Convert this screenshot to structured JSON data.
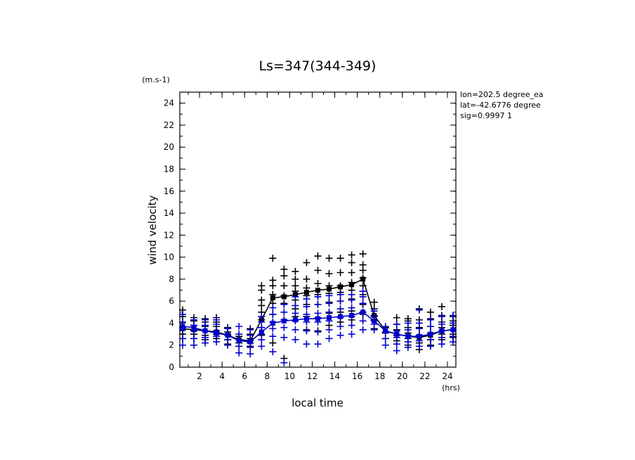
{
  "chart_data": {
    "type": "scatter",
    "title": "Ls=347(344-349)",
    "xlabel": "local time",
    "ylabel": "wind velocity",
    "x_unit": "(hrs)",
    "y_unit": "(m.s-1)",
    "xlim": [
      0.25,
      24.75
    ],
    "ylim": [
      0,
      25
    ],
    "x_ticks": [
      2,
      4,
      6,
      8,
      10,
      12,
      14,
      16,
      18,
      20,
      22,
      24
    ],
    "y_ticks": [
      0,
      2,
      4,
      6,
      8,
      10,
      12,
      14,
      16,
      18,
      20,
      22,
      24
    ],
    "annotations": [
      "lon=202.5 degree_ea",
      "lat=-42.6776 degree",
      "sig=0.9997 1"
    ],
    "x": [
      0.5,
      1.5,
      2.5,
      3.5,
      4.5,
      5.5,
      6.5,
      7.5,
      8.5,
      9.5,
      10.5,
      11.5,
      12.5,
      13.5,
      14.5,
      15.5,
      16.5,
      17.5,
      18.5,
      19.5,
      20.5,
      21.5,
      22.5,
      23.5,
      24.5
    ],
    "series": [
      {
        "color": "#000000",
        "mean": [
          3.5,
          3.4,
          3.3,
          3.2,
          2.9,
          2.5,
          2.4,
          4.3,
          6.3,
          6.4,
          6.6,
          6.8,
          7.0,
          7.1,
          7.3,
          7.5,
          8.0,
          4.7,
          3.3,
          3.0,
          2.8,
          2.7,
          2.9,
          3.3,
          3.4
        ],
        "points": [
          [
            2.6,
            3.0,
            3.6,
            4.1,
            4.6,
            5.2
          ],
          [
            2.6,
            3.0,
            3.4,
            3.8,
            4.2,
            4.5
          ],
          [
            2.5,
            2.9,
            3.3,
            3.7,
            4.1,
            4.4
          ],
          [
            2.6,
            3.0,
            3.3,
            3.7,
            4.1,
            4.5
          ],
          [
            2.1,
            2.5,
            2.9,
            3.2,
            3.6
          ],
          [
            1.9,
            2.2,
            2.5,
            2.8
          ],
          [
            1.9,
            2.2,
            2.6,
            3.0,
            3.5
          ],
          [
            2.9,
            3.6,
            4.3,
            5.0,
            5.6,
            6.1,
            7.0,
            7.4
          ],
          [
            2.2,
            4.8,
            5.8,
            6.6,
            7.4,
            7.9,
            9.9
          ],
          [
            0.8,
            4.3,
            5.8,
            6.5,
            7.4,
            8.3,
            8.9
          ],
          [
            4.6,
            5.3,
            6.1,
            6.9,
            7.4,
            8.0,
            8.7
          ],
          [
            3.4,
            4.6,
            5.7,
            6.5,
            7.2,
            8.0,
            9.5
          ],
          [
            3.3,
            4.5,
            5.7,
            6.6,
            7.6,
            8.8,
            10.1
          ],
          [
            3.8,
            4.9,
            5.9,
            6.7,
            7.4,
            8.5,
            9.9
          ],
          [
            4.1,
            5.0,
            6.0,
            6.8,
            7.4,
            8.6,
            9.9
          ],
          [
            4.3,
            5.1,
            6.2,
            7.0,
            7.7,
            8.6,
            9.5,
            10.2
          ],
          [
            4.8,
            5.7,
            6.6,
            7.4,
            8.1,
            8.8,
            9.3,
            10.3
          ],
          [
            3.5,
            4.3,
            4.7,
            5.3,
            5.9
          ],
          [
            2.6,
            3.1,
            3.6
          ],
          [
            2.4,
            2.9,
            3.4,
            3.9,
            4.5
          ],
          [
            2.0,
            2.6,
            3.1,
            3.6,
            4.2,
            4.4
          ],
          [
            1.6,
            2.2,
            2.9,
            3.6,
            4.3,
            5.3
          ],
          [
            2.0,
            2.5,
            3.1,
            3.7,
            4.4,
            5.0
          ],
          [
            2.5,
            3.0,
            3.6,
            4.1,
            4.7,
            5.5
          ],
          [
            2.7,
            3.0,
            3.4,
            3.8,
            4.2,
            4.6
          ]
        ]
      },
      {
        "color": "#0000cc",
        "mean": [
          3.7,
          3.6,
          3.3,
          3.1,
          2.9,
          2.4,
          2.3,
          3.2,
          4.0,
          4.2,
          4.3,
          4.4,
          4.4,
          4.5,
          4.6,
          4.7,
          5.0,
          4.2,
          3.3,
          3.0,
          2.8,
          2.8,
          3.0,
          3.3,
          3.4
        ],
        "points": [
          [
            2.0,
            2.6,
            3.4,
            4.1,
            4.8
          ],
          [
            2.0,
            2.6,
            3.3,
            3.8,
            4.3
          ],
          [
            2.2,
            2.7,
            3.3,
            3.8,
            4.3
          ],
          [
            2.3,
            2.8,
            3.3,
            3.9,
            4.3
          ],
          [
            2.0,
            2.5,
            3.0,
            3.5
          ],
          [
            1.3,
            1.9,
            2.5,
            3.0,
            3.7
          ],
          [
            1.2,
            1.8,
            2.4,
            2.9,
            3.4
          ],
          [
            1.9,
            2.5,
            3.0,
            3.6,
            4.1,
            4.6
          ],
          [
            1.4,
            2.8,
            3.5,
            4.1,
            4.8,
            5.4
          ],
          [
            0.4,
            2.7,
            3.6,
            4.3,
            5.0,
            5.7
          ],
          [
            2.5,
            3.4,
            4.2,
            4.9,
            5.6,
            6.4
          ],
          [
            2.1,
            3.3,
            4.1,
            4.8,
            5.5,
            6.2
          ],
          [
            2.1,
            3.2,
            4.1,
            4.9,
            5.7,
            6.4
          ],
          [
            2.6,
            3.4,
            4.2,
            5.0,
            5.8,
            6.5
          ],
          [
            2.9,
            3.7,
            4.5,
            5.3,
            6.0,
            6.6
          ],
          [
            3.0,
            3.8,
            4.6,
            5.4,
            6.1,
            6.6
          ],
          [
            3.4,
            4.2,
            5.0,
            5.8,
            6.4,
            6.9
          ],
          [
            3.4,
            3.9,
            4.2,
            4.6,
            5.1
          ],
          [
            2.0,
            2.6,
            3.2,
            3.7
          ],
          [
            1.5,
            2.1,
            2.7,
            3.3,
            3.9
          ],
          [
            1.8,
            2.3,
            2.9,
            3.4,
            4.0
          ],
          [
            1.9,
            2.4,
            2.9,
            3.5,
            4.0,
            5.2
          ],
          [
            1.9,
            2.5,
            3.1,
            3.7,
            4.3
          ],
          [
            2.1,
            2.7,
            3.3,
            3.9,
            4.6
          ],
          [
            2.3,
            2.8,
            3.4,
            4.0,
            4.7
          ]
        ]
      }
    ]
  }
}
